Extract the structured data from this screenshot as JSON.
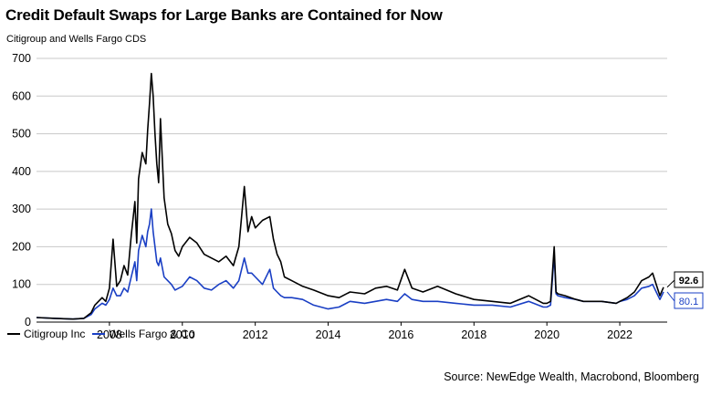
{
  "title": "Credit Default Swaps for Large Banks are Contained for Now",
  "subtitle": "Citigroup and Wells Fargo CDS",
  "source": "Source: NewEdge Wealth, Macrobond, Bloomberg",
  "colors": {
    "citi": "#000000",
    "wells": "#1a3fc4",
    "grid": "#c8c8c8"
  },
  "chart_data": {
    "type": "line",
    "title": "Credit Default Swaps for Large Banks are Contained for Now",
    "subtitle": "Citigroup and Wells Fargo CDS",
    "xlabel": "",
    "ylabel": "",
    "xlim": [
      2006.0,
      2023.3
    ],
    "ylim": [
      0,
      700
    ],
    "yticks": [
      "0",
      "100",
      "200",
      "300",
      "400",
      "500",
      "600",
      "700"
    ],
    "xticks": [
      "2008",
      "2010",
      "2012",
      "2014",
      "2016",
      "2018",
      "2020",
      "2022"
    ],
    "grid": "horizontal",
    "legend_position": "bottom-left",
    "end_labels": {
      "citi": "92.6",
      "wells": "80.1"
    },
    "series": [
      {
        "name": "Citigroup Inc",
        "color": "#000000",
        "x": [
          2006.0,
          2006.5,
          2007.0,
          2007.3,
          2007.5,
          2007.6,
          2007.8,
          2007.9,
          2008.0,
          2008.1,
          2008.2,
          2008.3,
          2008.4,
          2008.5,
          2008.6,
          2008.7,
          2008.75,
          2008.8,
          2008.9,
          2009.0,
          2009.05,
          2009.1,
          2009.15,
          2009.2,
          2009.25,
          2009.3,
          2009.35,
          2009.4,
          2009.5,
          2009.6,
          2009.7,
          2009.8,
          2009.9,
          2010.0,
          2010.2,
          2010.4,
          2010.6,
          2010.8,
          2011.0,
          2011.2,
          2011.4,
          2011.55,
          2011.7,
          2011.8,
          2011.9,
          2012.0,
          2012.2,
          2012.4,
          2012.5,
          2012.6,
          2012.7,
          2012.8,
          2013.0,
          2013.3,
          2013.6,
          2014.0,
          2014.3,
          2014.6,
          2015.0,
          2015.3,
          2015.6,
          2015.9,
          2016.1,
          2016.3,
          2016.6,
          2017.0,
          2017.5,
          2018.0,
          2018.5,
          2019.0,
          2019.5,
          2019.9,
          2020.0,
          2020.1,
          2020.2,
          2020.25,
          2020.3,
          2020.5,
          2020.8,
          2021.0,
          2021.5,
          2021.9,
          2022.0,
          2022.2,
          2022.4,
          2022.6,
          2022.8,
          2022.9,
          2023.0,
          2023.1,
          2023.2
        ],
        "values": [
          12,
          10,
          8,
          10,
          25,
          45,
          65,
          55,
          90,
          220,
          95,
          110,
          150,
          125,
          230,
          320,
          210,
          380,
          450,
          420,
          510,
          580,
          660,
          600,
          500,
          420,
          370,
          540,
          330,
          260,
          235,
          190,
          175,
          200,
          225,
          210,
          180,
          170,
          160,
          175,
          150,
          200,
          360,
          240,
          280,
          250,
          270,
          280,
          220,
          180,
          160,
          120,
          110,
          95,
          85,
          70,
          65,
          80,
          75,
          90,
          95,
          85,
          140,
          90,
          80,
          95,
          75,
          60,
          55,
          50,
          70,
          50,
          50,
          55,
          200,
          80,
          75,
          70,
          60,
          55,
          55,
          50,
          55,
          65,
          80,
          110,
          120,
          130,
          100,
          70,
          92.6
        ]
      },
      {
        "name": "Wells Fargo & Co",
        "color": "#1a3fc4",
        "x": [
          2006.0,
          2006.5,
          2007.0,
          2007.3,
          2007.5,
          2007.6,
          2007.8,
          2007.9,
          2008.0,
          2008.1,
          2008.2,
          2008.3,
          2008.4,
          2008.5,
          2008.6,
          2008.7,
          2008.75,
          2008.8,
          2008.9,
          2009.0,
          2009.05,
          2009.1,
          2009.15,
          2009.2,
          2009.25,
          2009.3,
          2009.35,
          2009.4,
          2009.5,
          2009.6,
          2009.7,
          2009.8,
          2009.9,
          2010.0,
          2010.2,
          2010.4,
          2010.6,
          2010.8,
          2011.0,
          2011.2,
          2011.4,
          2011.55,
          2011.7,
          2011.8,
          2011.9,
          2012.0,
          2012.2,
          2012.4,
          2012.5,
          2012.6,
          2012.7,
          2012.8,
          2013.0,
          2013.3,
          2013.6,
          2014.0,
          2014.3,
          2014.6,
          2015.0,
          2015.3,
          2015.6,
          2015.9,
          2016.1,
          2016.3,
          2016.6,
          2017.0,
          2017.5,
          2018.0,
          2018.5,
          2019.0,
          2019.5,
          2019.9,
          2020.0,
          2020.1,
          2020.2,
          2020.25,
          2020.3,
          2020.5,
          2020.8,
          2021.0,
          2021.5,
          2021.9,
          2022.0,
          2022.2,
          2022.4,
          2022.6,
          2022.8,
          2022.9,
          2023.0,
          2023.1,
          2023.2
        ],
        "values": [
          12,
          10,
          8,
          10,
          20,
          35,
          50,
          45,
          60,
          90,
          70,
          70,
          90,
          80,
          120,
          160,
          110,
          190,
          230,
          200,
          240,
          260,
          300,
          240,
          200,
          160,
          150,
          170,
          120,
          110,
          100,
          85,
          90,
          95,
          120,
          110,
          90,
          85,
          100,
          110,
          90,
          110,
          170,
          130,
          130,
          120,
          100,
          140,
          90,
          80,
          70,
          65,
          65,
          60,
          45,
          35,
          40,
          55,
          50,
          55,
          60,
          55,
          75,
          60,
          55,
          55,
          50,
          45,
          45,
          40,
          55,
          40,
          40,
          45,
          180,
          75,
          70,
          65,
          60,
          55,
          55,
          50,
          55,
          60,
          70,
          90,
          95,
          100,
          80,
          60,
          80.1
        ]
      }
    ]
  }
}
